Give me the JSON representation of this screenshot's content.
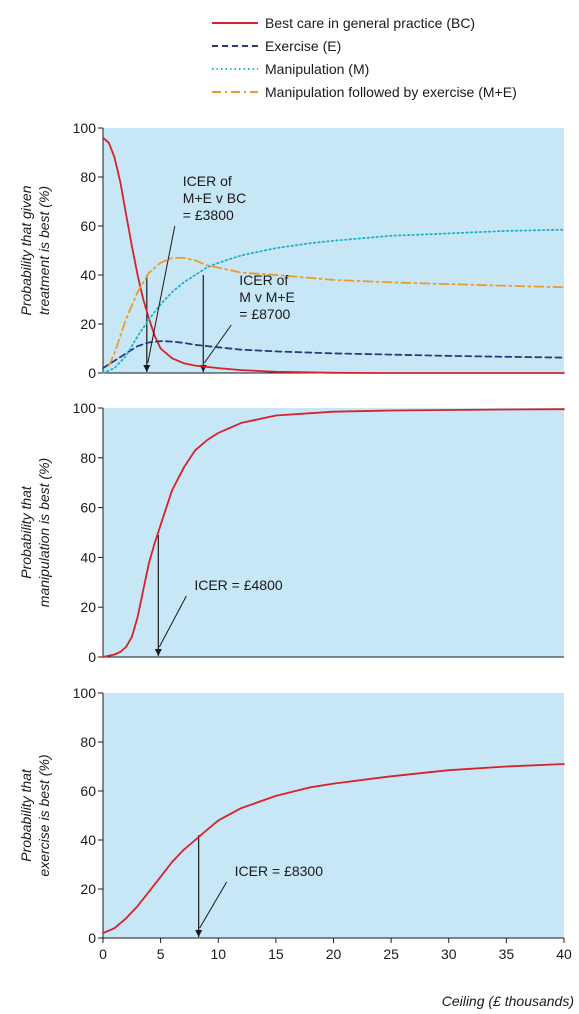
{
  "colors": {
    "plot_background": "#c7e6f6",
    "bc": "#d62228",
    "e": "#2b3a7a",
    "m": "#1fb3c9",
    "me": "#ee9a2b"
  },
  "x_axis_label": "Ceiling (£ thousands)",
  "chart_data": [
    {
      "type": "line",
      "ylabel_lines": [
        "Probability that given",
        "treatment is best (%)"
      ],
      "xlim": [
        0,
        40
      ],
      "ylim": [
        0,
        100
      ],
      "yticks": [
        "0",
        "20",
        "40",
        "60",
        "80",
        "100"
      ],
      "legend_position": "above",
      "series": [
        {
          "name": "Best care in general practice (BC)",
          "key": "bc",
          "style": "solid",
          "x": [
            0,
            0.5,
            1,
            1.5,
            2,
            2.5,
            3,
            3.5,
            4,
            4.5,
            5,
            6,
            7,
            8,
            9,
            10,
            12,
            15,
            20,
            25,
            30,
            35,
            40
          ],
          "y": [
            96,
            94,
            88,
            78,
            65,
            52,
            40,
            30,
            22,
            15,
            10,
            6,
            4,
            3,
            2.5,
            2,
            1.2,
            0.5,
            0.1,
            0,
            0,
            0,
            0
          ]
        },
        {
          "name": "Exercise (E)",
          "key": "e",
          "style": "dashed",
          "x": [
            0,
            1,
            2,
            3,
            4,
            5,
            6,
            7,
            8,
            10,
            12,
            15,
            20,
            25,
            30,
            35,
            40
          ],
          "y": [
            2,
            5,
            8,
            11,
            12.5,
            13,
            12.8,
            12.3,
            11.5,
            10.5,
            9.5,
            8.8,
            8,
            7.5,
            7,
            6.6,
            6.3
          ]
        },
        {
          "name": "Manipulation (M)",
          "key": "m",
          "style": "dotted",
          "x": [
            0,
            1,
            2,
            3,
            4,
            5,
            6,
            7,
            8,
            9,
            10,
            12,
            15,
            18,
            20,
            25,
            30,
            35,
            40
          ],
          "y": [
            0,
            2,
            7,
            15,
            22,
            28,
            33,
            37,
            40,
            43,
            45,
            48,
            51,
            53,
            54,
            56,
            57,
            58,
            58.5
          ]
        },
        {
          "name": "Manipulation followed by exercise (M+E)",
          "key": "me",
          "style": "dashdot",
          "x": [
            0.5,
            1,
            2,
            3,
            4,
            5,
            6,
            7,
            8,
            9,
            10,
            12,
            15,
            20,
            25,
            30,
            35,
            40
          ],
          "y": [
            3,
            8,
            22,
            33,
            41,
            45,
            47,
            47,
            46,
            44,
            43,
            41,
            40,
            38,
            37,
            36.3,
            35.6,
            35
          ]
        }
      ],
      "annotations": [
        {
          "lines": [
            "ICER of",
            "M+E v BC",
            "= £3800"
          ],
          "x": 3.8,
          "y_top": 40
        },
        {
          "lines": [
            "ICER of",
            "M v M+E",
            "= £8700"
          ],
          "x": 8.7,
          "y_top": 40
        }
      ]
    },
    {
      "type": "line",
      "ylabel_lines": [
        "Probability that",
        "manipulation is best (%)"
      ],
      "xlim": [
        0,
        40
      ],
      "ylim": [
        0,
        100
      ],
      "yticks": [
        "0",
        "20",
        "40",
        "60",
        "80",
        "100"
      ],
      "series": [
        {
          "key": "bc",
          "style": "solid",
          "x": [
            0,
            1,
            1.5,
            2,
            2.5,
            3,
            3.5,
            4,
            4.5,
            5,
            6,
            7,
            8,
            9,
            10,
            12,
            15,
            20,
            25,
            30,
            35,
            40
          ],
          "y": [
            0,
            1,
            2,
            4,
            8,
            16,
            27,
            38,
            46,
            53,
            67,
            76,
            83,
            87,
            90,
            94,
            97,
            98.5,
            99,
            99.2,
            99.4,
            99.5
          ]
        }
      ],
      "annotations": [
        {
          "lines": [
            "ICER = £4800"
          ],
          "x": 4.8,
          "y_top": 49
        }
      ]
    },
    {
      "type": "line",
      "ylabel_lines": [
        "Probability that",
        "exercise is best (%)"
      ],
      "xlim": [
        0,
        40
      ],
      "ylim": [
        0,
        100
      ],
      "yticks": [
        "0",
        "20",
        "40",
        "60",
        "80",
        "100"
      ],
      "xticks": [
        "0",
        "5",
        "10",
        "15",
        "20",
        "25",
        "30",
        "35",
        "40"
      ],
      "series": [
        {
          "key": "bc",
          "style": "solid",
          "x": [
            0,
            1,
            2,
            3,
            4,
            5,
            6,
            7,
            8,
            9,
            10,
            12,
            15,
            18,
            20,
            25,
            30,
            35,
            40
          ],
          "y": [
            2,
            4,
            8,
            13,
            19,
            25,
            31,
            36,
            40,
            44,
            48,
            53,
            58,
            61.5,
            63,
            66,
            68.5,
            70,
            71
          ]
        }
      ],
      "annotations": [
        {
          "lines": [
            "ICER = £8300"
          ],
          "x": 8.3,
          "y_top": 42
        }
      ]
    }
  ]
}
